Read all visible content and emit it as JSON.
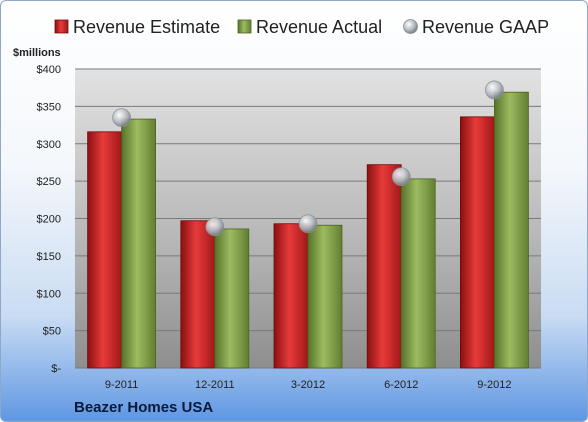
{
  "chart_data": {
    "type": "bar",
    "categories": [
      "9-2011",
      "12-2011",
      "3-2012",
      "6-2012",
      "9-2012"
    ],
    "series": [
      {
        "name": "Revenue Estimate",
        "values": [
          316,
          197,
          193,
          272,
          336
        ],
        "color": "#d42a2a",
        "kind": "bar"
      },
      {
        "name": "Revenue Actual",
        "values": [
          333,
          186,
          191,
          253,
          369
        ],
        "color": "#86a84a",
        "kind": "bar"
      },
      {
        "name": "Revenue GAAP",
        "values": [
          335,
          189,
          193,
          256,
          372
        ],
        "color": "#b8bcc4",
        "kind": "marker"
      }
    ],
    "ylabel": "$millions",
    "ylim": [
      0,
      400
    ],
    "yticks": [
      0,
      50,
      100,
      150,
      200,
      250,
      300,
      350,
      400
    ],
    "ytick_labels": [
      "$-",
      "$50",
      "$100",
      "$150",
      "$200",
      "$250",
      "$300",
      "$350",
      "$400"
    ],
    "grid": true,
    "legend": "top"
  },
  "footer": {
    "company": "Beazer Homes USA"
  }
}
